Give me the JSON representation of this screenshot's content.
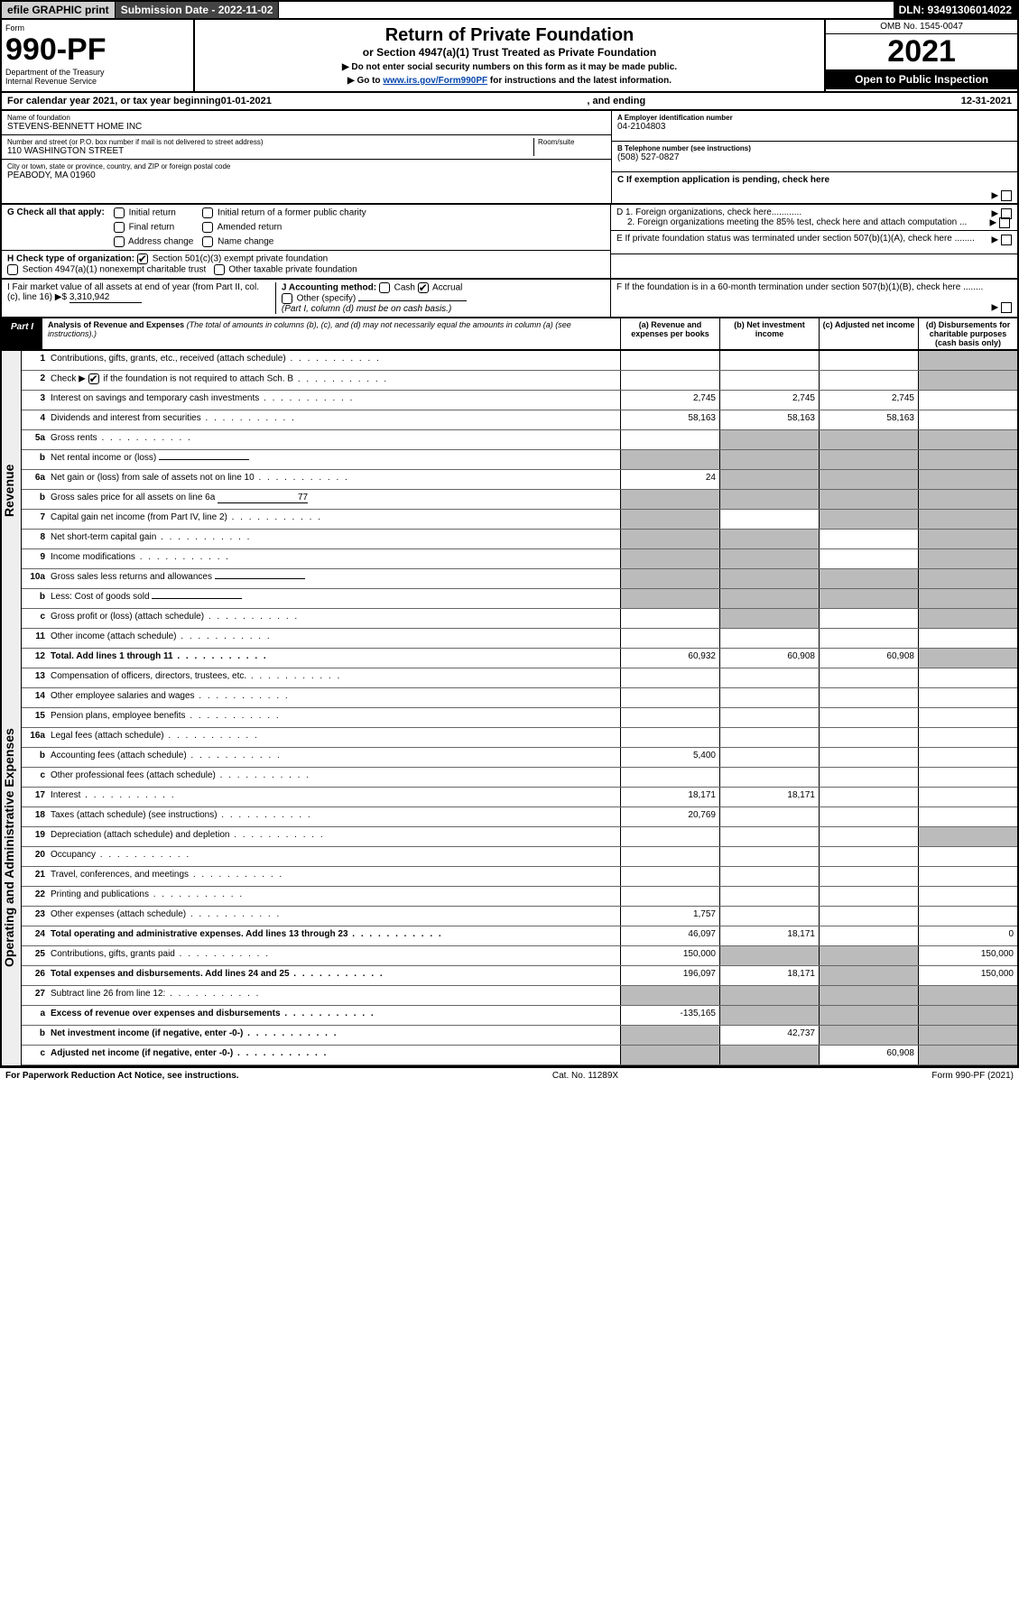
{
  "topbar": {
    "efile": "efile GRAPHIC print",
    "subdate": "Submission Date - 2022-11-02",
    "dln": "DLN: 93491306014022"
  },
  "header": {
    "form_label": "Form",
    "form_num": "990-PF",
    "dept": "Department of the Treasury",
    "irs": "Internal Revenue Service",
    "title": "Return of Private Foundation",
    "subtitle": "or Section 4947(a)(1) Trust Treated as Private Foundation",
    "note1": "▶ Do not enter social security numbers on this form as it may be made public.",
    "note2_pre": "▶ Go to ",
    "note2_link": "www.irs.gov/Form990PF",
    "note2_post": " for instructions and the latest information.",
    "omb": "OMB No. 1545-0047",
    "year": "2021",
    "pub": "Open to Public Inspection"
  },
  "cal": {
    "pre": "For calendar year 2021, or tax year beginning ",
    "begin": "01-01-2021",
    "mid": ", and ending ",
    "end": "12-31-2021"
  },
  "id": {
    "name_lbl": "Name of foundation",
    "name": "STEVENS-BENNETT HOME INC",
    "a_lbl": "A Employer identification number",
    "a": "04-2104803",
    "addr_lbl": "Number and street (or P.O. box number if mail is not delivered to street address)",
    "addr": "110 WASHINGTON STREET",
    "room_lbl": "Room/suite",
    "b_lbl": "B Telephone number (see instructions)",
    "b": "(508) 527-0827",
    "city_lbl": "City or town, state or province, country, and ZIP or foreign postal code",
    "city": "PEABODY, MA  01960",
    "c_lbl": "C If exemption application is pending, check here"
  },
  "g": {
    "lbl": "G Check all that apply:",
    "o1": "Initial return",
    "o2": "Final return",
    "o3": "Address change",
    "o4": "Initial return of a former public charity",
    "o5": "Amended return",
    "o6": "Name change"
  },
  "d": {
    "l1": "D 1. Foreign organizations, check here............",
    "l2": "2. Foreign organizations meeting the 85% test, check here and attach computation ..."
  },
  "e": "E  If private foundation status was terminated under section 507(b)(1)(A), check here ........",
  "h": {
    "lbl": "H Check type of organization:",
    "o1": "Section 501(c)(3) exempt private foundation",
    "o2": "Section 4947(a)(1) nonexempt charitable trust",
    "o3": "Other taxable private foundation"
  },
  "i": {
    "lbl": "I Fair market value of all assets at end of year (from Part II, col. (c), line 16) ▶$",
    "val": "3,310,942"
  },
  "j": {
    "lbl": "J Accounting method:",
    "o1": "Cash",
    "o2": "Accrual",
    "o3": "Other (specify)",
    "note": "(Part I, column (d) must be on cash basis.)"
  },
  "f": "F  If the foundation is in a 60-month termination under section 507(b)(1)(B), check here ........",
  "part1": {
    "hdr": "Part I",
    "title": "Analysis of Revenue and Expenses",
    "note": "(The total of amounts in columns (b), (c), and (d) may not necessarily equal the amounts in column (a) (see instructions).)",
    "ca": "(a)  Revenue and expenses per books",
    "cb": "(b)  Net investment income",
    "cc": "(c)  Adjusted net income",
    "cd": "(d)  Disbursements for charitable purposes (cash basis only)"
  },
  "strip": {
    "rev": "Revenue",
    "exp": "Operating and Administrative Expenses"
  },
  "rows": {
    "r1": {
      "n": "1",
      "d": "Contributions, gifts, grants, etc., received (attach schedule)"
    },
    "r2": {
      "n": "2",
      "d_pre": "Check ▶ ",
      "d_post": " if the foundation is not required to attach Sch. B"
    },
    "r3": {
      "n": "3",
      "d": "Interest on savings and temporary cash investments",
      "a": "2,745",
      "b": "2,745",
      "c": "2,745"
    },
    "r4": {
      "n": "4",
      "d": "Dividends and interest from securities",
      "a": "58,163",
      "b": "58,163",
      "c": "58,163"
    },
    "r5a": {
      "n": "5a",
      "d": "Gross rents"
    },
    "r5b": {
      "n": "b",
      "d": "Net rental income or (loss)"
    },
    "r6a": {
      "n": "6a",
      "d": "Net gain or (loss) from sale of assets not on line 10",
      "a": "24"
    },
    "r6b": {
      "n": "b",
      "d": "Gross sales price for all assets on line 6a",
      "v": "77"
    },
    "r7": {
      "n": "7",
      "d": "Capital gain net income (from Part IV, line 2)"
    },
    "r8": {
      "n": "8",
      "d": "Net short-term capital gain"
    },
    "r9": {
      "n": "9",
      "d": "Income modifications"
    },
    "r10a": {
      "n": "10a",
      "d": "Gross sales less returns and allowances"
    },
    "r10b": {
      "n": "b",
      "d": "Less: Cost of goods sold"
    },
    "r10c": {
      "n": "c",
      "d": "Gross profit or (loss) (attach schedule)"
    },
    "r11": {
      "n": "11",
      "d": "Other income (attach schedule)"
    },
    "r12": {
      "n": "12",
      "d": "Total. Add lines 1 through 11",
      "a": "60,932",
      "b": "60,908",
      "c": "60,908"
    },
    "r13": {
      "n": "13",
      "d": "Compensation of officers, directors, trustees, etc."
    },
    "r14": {
      "n": "14",
      "d": "Other employee salaries and wages"
    },
    "r15": {
      "n": "15",
      "d": "Pension plans, employee benefits"
    },
    "r16a": {
      "n": "16a",
      "d": "Legal fees (attach schedule)"
    },
    "r16b": {
      "n": "b",
      "d": "Accounting fees (attach schedule)",
      "a": "5,400"
    },
    "r16c": {
      "n": "c",
      "d": "Other professional fees (attach schedule)"
    },
    "r17": {
      "n": "17",
      "d": "Interest",
      "a": "18,171",
      "b": "18,171"
    },
    "r18": {
      "n": "18",
      "d": "Taxes (attach schedule) (see instructions)",
      "a": "20,769"
    },
    "r19": {
      "n": "19",
      "d": "Depreciation (attach schedule) and depletion"
    },
    "r20": {
      "n": "20",
      "d": "Occupancy"
    },
    "r21": {
      "n": "21",
      "d": "Travel, conferences, and meetings"
    },
    "r22": {
      "n": "22",
      "d": "Printing and publications"
    },
    "r23": {
      "n": "23",
      "d": "Other expenses (attach schedule)",
      "a": "1,757"
    },
    "r24": {
      "n": "24",
      "d": "Total operating and administrative expenses. Add lines 13 through 23",
      "a": "46,097",
      "b": "18,171",
      "dd": "0"
    },
    "r25": {
      "n": "25",
      "d": "Contributions, gifts, grants paid",
      "a": "150,000",
      "dd": "150,000"
    },
    "r26": {
      "n": "26",
      "d": "Total expenses and disbursements. Add lines 24 and 25",
      "a": "196,097",
      "b": "18,171",
      "dd": "150,000"
    },
    "r27": {
      "n": "27",
      "d": "Subtract line 26 from line 12:"
    },
    "r27a": {
      "n": "a",
      "d": "Excess of revenue over expenses and disbursements",
      "a": "-135,165"
    },
    "r27b": {
      "n": "b",
      "d": "Net investment income (if negative, enter -0-)",
      "b": "42,737"
    },
    "r27c": {
      "n": "c",
      "d": "Adjusted net income (if negative, enter -0-)",
      "c": "60,908"
    }
  },
  "footer": {
    "l": "For Paperwork Reduction Act Notice, see instructions.",
    "m": "Cat. No. 11289X",
    "r": "Form 990-PF (2021)"
  }
}
